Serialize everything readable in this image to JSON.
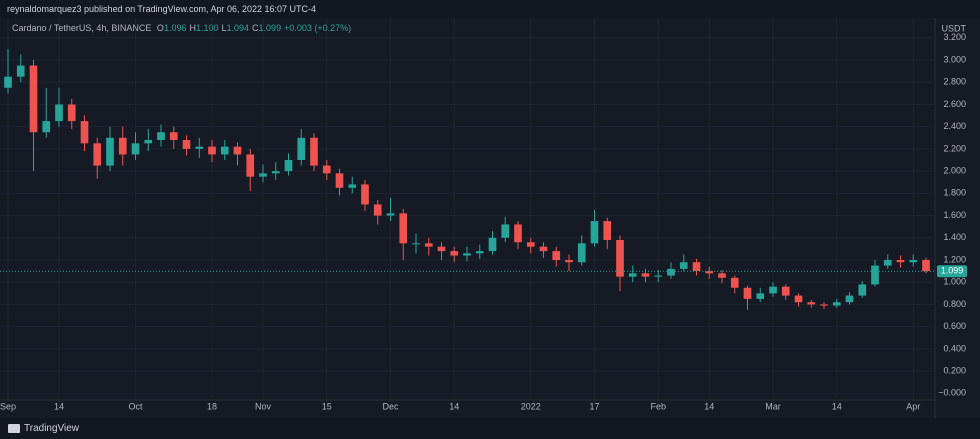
{
  "header": "reynaldomarquez3 published on TradingView.com, Apr 06, 2022 16:07 UTC-4",
  "footer": "TradingView",
  "chart_data": {
    "type": "candlestick",
    "title": "Cardano / TetherUS, 4h, BINANCE",
    "legend": [
      {
        "key": "O",
        "value": "1.096"
      },
      {
        "key": "H",
        "value": "1.100"
      },
      {
        "key": "L",
        "value": "1.094"
      },
      {
        "key": "C",
        "value": "1.099"
      }
    ],
    "change": "+0.003 (+0.27%)",
    "unit": "USDT",
    "last_price": 1.099,
    "up_color": "#26a69a",
    "down_color": "#ef5350",
    "grid": true,
    "categories": [
      "Sep",
      null,
      null,
      null,
      "14",
      null,
      null,
      null,
      null,
      null,
      "Oct",
      null,
      null,
      null,
      null,
      null,
      "18",
      null,
      null,
      null,
      "Nov",
      null,
      null,
      null,
      null,
      "15",
      null,
      null,
      null,
      null,
      "Dec",
      null,
      null,
      null,
      null,
      "14",
      null,
      null,
      null,
      null,
      null,
      "2022",
      null,
      null,
      null,
      null,
      "17",
      null,
      null,
      null,
      null,
      "Feb",
      null,
      null,
      null,
      "14",
      null,
      null,
      null,
      null,
      "Mar",
      null,
      null,
      null,
      null,
      "14",
      null,
      null,
      null,
      null,
      null,
      "Apr",
      null
    ],
    "open": [
      2.75,
      2.85,
      2.95,
      2.35,
      2.45,
      2.6,
      2.45,
      2.25,
      2.05,
      2.3,
      2.15,
      2.25,
      2.28,
      2.35,
      2.28,
      2.2,
      2.22,
      2.15,
      2.22,
      2.15,
      1.95,
      1.98,
      2.0,
      2.1,
      2.3,
      2.05,
      1.98,
      1.85,
      1.88,
      1.7,
      1.6,
      1.62,
      1.35,
      1.35,
      1.32,
      1.28,
      1.24,
      1.26,
      1.28,
      1.4,
      1.52,
      1.36,
      1.32,
      1.28,
      1.2,
      1.18,
      1.35,
      1.55,
      1.38,
      1.05,
      1.08,
      1.05,
      1.06,
      1.12,
      1.18,
      1.1,
      1.08,
      1.04,
      0.95,
      0.85,
      0.9,
      0.96,
      0.88,
      0.82,
      0.8,
      0.79,
      0.82,
      0.88,
      0.98,
      1.15,
      1.2,
      1.18,
      1.2
    ],
    "high": [
      3.1,
      3.05,
      3.0,
      2.75,
      2.75,
      2.65,
      2.5,
      2.3,
      2.4,
      2.4,
      2.35,
      2.38,
      2.42,
      2.4,
      2.32,
      2.3,
      2.28,
      2.28,
      2.26,
      2.2,
      2.06,
      2.08,
      2.16,
      2.38,
      2.34,
      2.1,
      2.02,
      1.95,
      1.92,
      1.74,
      1.76,
      1.66,
      1.44,
      1.4,
      1.36,
      1.32,
      1.32,
      1.34,
      1.46,
      1.59,
      1.55,
      1.4,
      1.36,
      1.32,
      1.25,
      1.42,
      1.65,
      1.58,
      1.42,
      1.15,
      1.12,
      1.11,
      1.18,
      1.25,
      1.21,
      1.14,
      1.11,
      1.06,
      0.97,
      0.95,
      1.0,
      0.98,
      0.9,
      0.84,
      0.82,
      0.85,
      0.91,
      1.01,
      1.2,
      1.25,
      1.24,
      1.25,
      1.22
    ],
    "low": [
      2.7,
      2.8,
      2.0,
      2.3,
      2.4,
      2.38,
      2.18,
      1.93,
      2.0,
      2.05,
      2.1,
      2.18,
      2.22,
      2.2,
      2.14,
      2.12,
      2.08,
      2.1,
      2.05,
      1.82,
      1.9,
      1.92,
      1.96,
      2.05,
      2.0,
      1.92,
      1.78,
      1.8,
      1.64,
      1.52,
      1.55,
      1.2,
      1.26,
      1.24,
      1.2,
      1.18,
      1.19,
      1.21,
      1.25,
      1.36,
      1.3,
      1.26,
      1.22,
      1.14,
      1.1,
      1.15,
      1.32,
      1.3,
      0.92,
      1.0,
      1.0,
      1.0,
      1.03,
      1.1,
      1.06,
      1.03,
      0.99,
      0.9,
      0.75,
      0.82,
      0.87,
      0.84,
      0.78,
      0.77,
      0.76,
      0.77,
      0.8,
      0.86,
      0.96,
      1.12,
      1.13,
      1.14,
      1.08
    ],
    "close": [
      2.85,
      2.95,
      2.35,
      2.45,
      2.6,
      2.45,
      2.25,
      2.05,
      2.3,
      2.15,
      2.25,
      2.28,
      2.35,
      2.28,
      2.2,
      2.22,
      2.15,
      2.22,
      2.15,
      1.95,
      1.98,
      2.0,
      2.1,
      2.3,
      2.05,
      1.98,
      1.85,
      1.88,
      1.7,
      1.6,
      1.62,
      1.35,
      1.35,
      1.32,
      1.28,
      1.24,
      1.26,
      1.28,
      1.4,
      1.52,
      1.36,
      1.32,
      1.28,
      1.2,
      1.18,
      1.35,
      1.55,
      1.38,
      1.05,
      1.08,
      1.05,
      1.06,
      1.12,
      1.18,
      1.1,
      1.08,
      1.04,
      0.95,
      0.85,
      0.9,
      0.96,
      0.88,
      0.82,
      0.8,
      0.79,
      0.82,
      0.88,
      0.98,
      1.15,
      1.2,
      1.18,
      1.2,
      1.1
    ],
    "ylim": [
      -0.06,
      3.36
    ],
    "yticks": [
      {
        "value": 0,
        "label": "−0.000"
      },
      {
        "value": 0.2,
        "label": "0.200"
      },
      {
        "value": 0.4,
        "label": "0.400"
      },
      {
        "value": 0.6,
        "label": "0.600"
      },
      {
        "value": 0.8,
        "label": "0.800"
      },
      {
        "value": 1,
        "label": "1.000"
      },
      {
        "value": 1.2,
        "label": "1.200"
      },
      {
        "value": 1.4,
        "label": "1.400"
      },
      {
        "value": 1.6,
        "label": "1.600"
      },
      {
        "value": 1.8,
        "label": "1.800"
      },
      {
        "value": 2,
        "label": "2.000"
      },
      {
        "value": 2.2,
        "label": "2.200"
      },
      {
        "value": 2.4,
        "label": "2.400"
      },
      {
        "value": 2.6,
        "label": "2.600"
      },
      {
        "value": 2.8,
        "label": "2.800"
      },
      {
        "value": 3,
        "label": "3.000"
      },
      {
        "value": 3.2,
        "label": "3.200"
      }
    ]
  }
}
